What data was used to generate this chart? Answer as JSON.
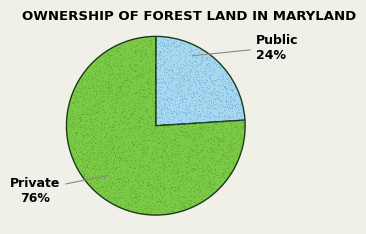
{
  "title": "OWNERSHIP OF FOREST LAND IN MARYLAND",
  "slices": [
    24,
    76
  ],
  "colors": [
    "#a8d8f0",
    "#7bc947"
  ],
  "edge_color": "#1a3a1a",
  "background_color": "#f0efe8",
  "title_fontsize": 9.5,
  "label_fontsize": 9,
  "startangle": 90,
  "private_label": "Private\n76%",
  "public_label": "Public\n24%"
}
